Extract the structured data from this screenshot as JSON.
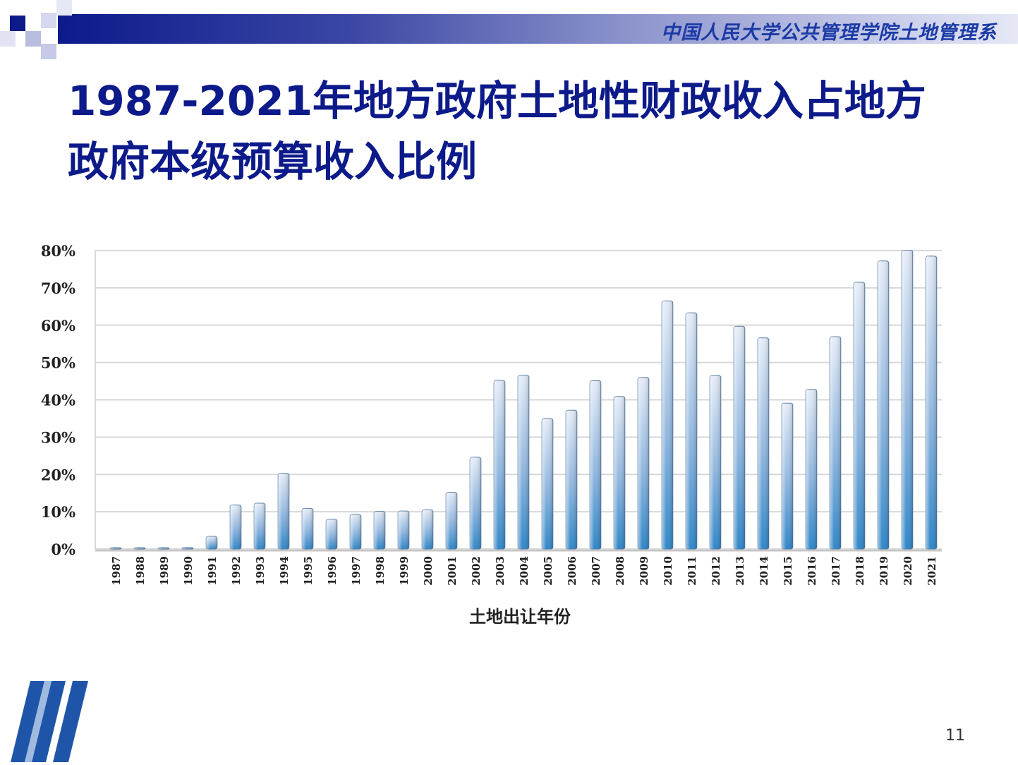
{
  "header": {
    "institution": "中国人民大学公共管理学院土地管理系"
  },
  "slide": {
    "title": "1987-2021年地方政府土地性财政收入占地方政府本级预算收入比例",
    "page_number": "11"
  },
  "colors": {
    "title": "#0d1a8a",
    "bar_top": "#e4ecf8",
    "bar_bottom": "#2f86c8",
    "grid": "#d8d8d8"
  },
  "chart_data": {
    "type": "bar",
    "title": "",
    "xlabel": "土地出让年份",
    "ylabel": "",
    "ylim": [
      0,
      0.8
    ],
    "y_ticks": [
      "0%",
      "10%",
      "20%",
      "30%",
      "40%",
      "50%",
      "60%",
      "70%",
      "80%"
    ],
    "grid": true,
    "legend": "none",
    "categories": [
      "1987",
      "1988",
      "1989",
      "1990",
      "1991",
      "1992",
      "1993",
      "1994",
      "1995",
      "1996",
      "1997",
      "1998",
      "1999",
      "2000",
      "2001",
      "2002",
      "2003",
      "2004",
      "2005",
      "2006",
      "2007",
      "2008",
      "2009",
      "2010",
      "2011",
      "2012",
      "2013",
      "2014",
      "2015",
      "2016",
      "2017",
      "2018",
      "2019",
      "2020",
      "2021"
    ],
    "values": [
      0.0,
      0.003,
      0.003,
      0.004,
      0.034,
      0.118,
      0.123,
      0.203,
      0.109,
      0.08,
      0.093,
      0.101,
      0.102,
      0.105,
      0.152,
      0.246,
      0.452,
      0.466,
      0.35,
      0.372,
      0.451,
      0.409,
      0.46,
      0.665,
      0.633,
      0.465,
      0.597,
      0.566,
      0.391,
      0.428,
      0.569,
      0.715,
      0.772,
      0.801,
      0.785
    ]
  }
}
